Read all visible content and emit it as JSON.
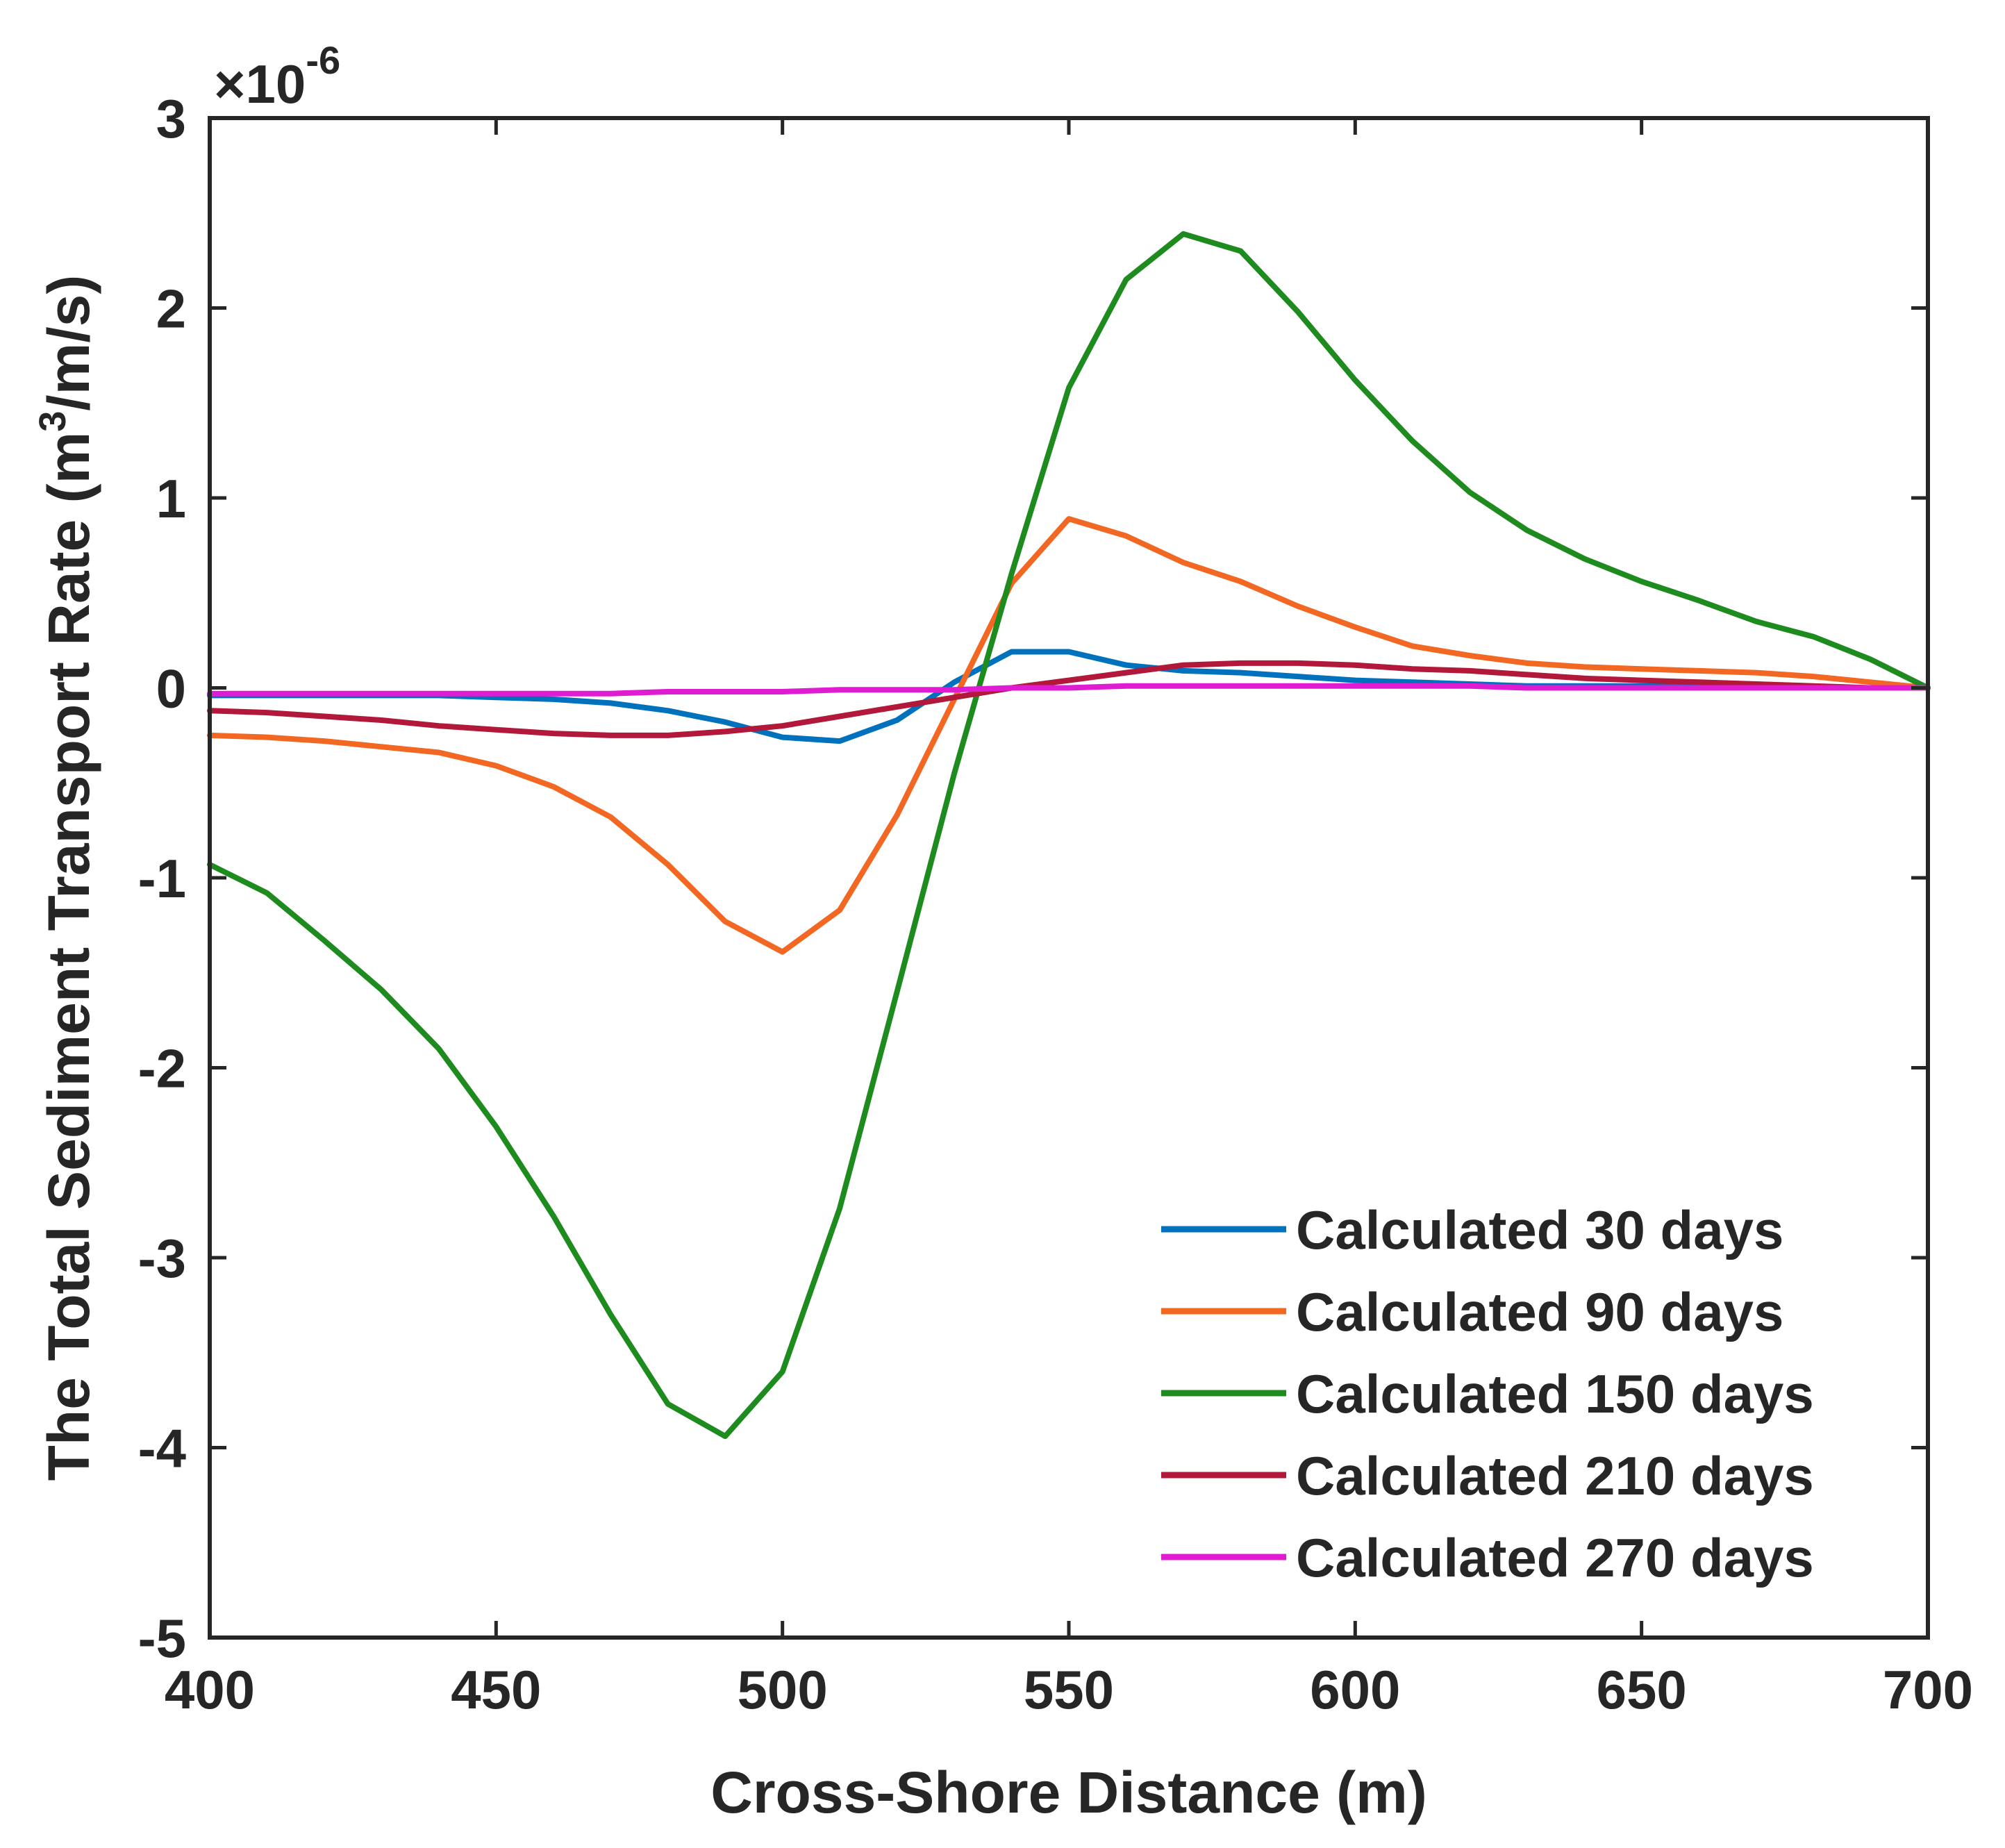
{
  "chart_data": {
    "type": "line",
    "title": "",
    "xlabel": "Cross-Shore Distance (m)",
    "ylabel_main": "The Total Sediment Transport Rate (m",
    "ylabel_sup": "3",
    "ylabel_tail": "/m/s)",
    "y_multiplier_base": "×10",
    "y_multiplier_exp": "-6",
    "xlim": [
      400,
      700
    ],
    "ylim": [
      -5,
      3
    ],
    "xticks": [
      400,
      450,
      500,
      550,
      600,
      650,
      700
    ],
    "yticks": [
      -5,
      -4,
      -3,
      -2,
      -1,
      0,
      1,
      2,
      3
    ],
    "grid": false,
    "legend_position": "bottom-right",
    "x": [
      400,
      410,
      420,
      430,
      440,
      450,
      460,
      470,
      480,
      490,
      500,
      510,
      520,
      530,
      540,
      550,
      560,
      570,
      580,
      590,
      600,
      610,
      620,
      630,
      640,
      650,
      660,
      670,
      680,
      690,
      700
    ],
    "series": [
      {
        "name": "Calculated 30 days",
        "color": "#0072BD",
        "values": [
          -0.04,
          -0.04,
          -0.04,
          -0.04,
          -0.04,
          -0.05,
          -0.06,
          -0.08,
          -0.12,
          -0.18,
          -0.26,
          -0.28,
          -0.17,
          0.03,
          0.19,
          0.19,
          0.12,
          0.09,
          0.08,
          0.06,
          0.04,
          0.03,
          0.02,
          0.01,
          0.01,
          0.01,
          0.01,
          0.0,
          0.0,
          0.0,
          0.0
        ]
      },
      {
        "name": "Calculated 90 days",
        "color": "#F26722",
        "values": [
          -0.25,
          -0.26,
          -0.28,
          -0.31,
          -0.34,
          -0.41,
          -0.52,
          -0.68,
          -0.93,
          -1.23,
          -1.39,
          -1.17,
          -0.67,
          -0.06,
          0.55,
          0.89,
          0.8,
          0.66,
          0.56,
          0.43,
          0.32,
          0.22,
          0.17,
          0.13,
          0.11,
          0.1,
          0.09,
          0.08,
          0.06,
          0.03,
          0.0
        ]
      },
      {
        "name": "Calculated 150 days",
        "color": "#1E8B1E",
        "values": [
          -0.93,
          -1.08,
          -1.33,
          -1.59,
          -1.9,
          -2.31,
          -2.78,
          -3.3,
          -3.77,
          -3.94,
          -3.6,
          -2.74,
          -1.6,
          -0.45,
          0.6,
          1.58,
          2.15,
          2.39,
          2.3,
          1.98,
          1.62,
          1.3,
          1.03,
          0.83,
          0.68,
          0.56,
          0.46,
          0.35,
          0.27,
          0.15,
          0.0
        ]
      },
      {
        "name": "Calculated 210 days",
        "color": "#B2183A",
        "values": [
          -0.12,
          -0.13,
          -0.15,
          -0.17,
          -0.2,
          -0.22,
          -0.24,
          -0.25,
          -0.25,
          -0.23,
          -0.2,
          -0.15,
          -0.1,
          -0.05,
          0.0,
          0.04,
          0.08,
          0.12,
          0.13,
          0.13,
          0.12,
          0.1,
          0.09,
          0.07,
          0.05,
          0.04,
          0.03,
          0.02,
          0.01,
          0.0,
          0.0
        ]
      },
      {
        "name": "Calculated 270 days",
        "color": "#E01CD3",
        "values": [
          -0.03,
          -0.03,
          -0.03,
          -0.03,
          -0.03,
          -0.03,
          -0.03,
          -0.03,
          -0.02,
          -0.02,
          -0.02,
          -0.01,
          -0.01,
          -0.01,
          0.0,
          0.0,
          0.01,
          0.01,
          0.01,
          0.01,
          0.01,
          0.01,
          0.01,
          0.0,
          0.0,
          0.0,
          0.0,
          0.0,
          0.0,
          0.0,
          0.0
        ]
      }
    ]
  }
}
